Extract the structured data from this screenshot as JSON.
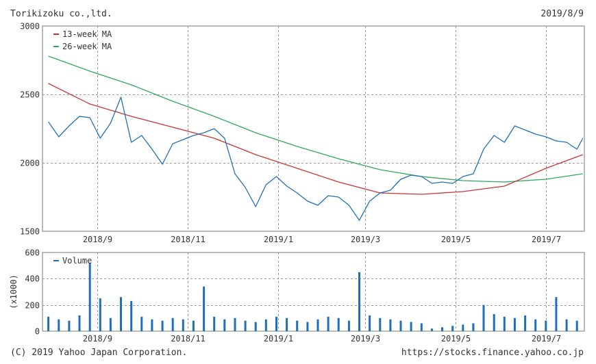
{
  "header": {
    "company": "Torikizoku co.,ltd.",
    "date": "2019/8/9"
  },
  "footer": {
    "copyright": "(C) 2019 Yahoo Japan Corporation.",
    "url": "https://stocks.finance.yahoo.co.jp"
  },
  "colors": {
    "price": "#1f6fb8",
    "ma13": "#cc3333",
    "ma26": "#2ea85a",
    "volume": "#1f6fb8",
    "grid": "#9a9a9a"
  },
  "chart_data": [
    {
      "type": "line",
      "ylim": [
        1500,
        3000
      ],
      "y_ticks": [
        "3000",
        "2500",
        "2000",
        "1500"
      ],
      "x_tick_labels": [
        "2018/9",
        "2018/11",
        "2019/1",
        "2019/3",
        "2019/5",
        "2019/7"
      ],
      "legend": [
        "13-week MA",
        "26-week MA"
      ],
      "legend_position": "top-left",
      "grid": true,
      "series": [
        {
          "name": "price",
          "dates": [
            "2018-08-13",
            "2018-08-20",
            "2018-08-27",
            "2018-09-03",
            "2018-09-10",
            "2018-09-17",
            "2018-09-24",
            "2018-10-01",
            "2018-10-08",
            "2018-10-15",
            "2018-10-22",
            "2018-10-29",
            "2018-11-05",
            "2018-11-12",
            "2018-11-19",
            "2018-11-26",
            "2018-12-03",
            "2018-12-10",
            "2018-12-17",
            "2018-12-24",
            "2018-12-31",
            "2019-01-07",
            "2019-01-14",
            "2019-01-21",
            "2019-01-28",
            "2019-02-04",
            "2019-02-11",
            "2019-02-18",
            "2019-02-25",
            "2019-03-04",
            "2019-03-11",
            "2019-03-18",
            "2019-03-25",
            "2019-04-01",
            "2019-04-08",
            "2019-04-15",
            "2019-04-22",
            "2019-04-29",
            "2019-05-06",
            "2019-05-13",
            "2019-05-20",
            "2019-05-27",
            "2019-06-03",
            "2019-06-10",
            "2019-06-17",
            "2019-06-24",
            "2019-07-01",
            "2019-07-08",
            "2019-07-15",
            "2019-07-22",
            "2019-07-29",
            "2019-08-05",
            "2019-08-09"
          ],
          "values": [
            2300,
            2190,
            2270,
            2340,
            2330,
            2180,
            2290,
            2480,
            2150,
            2200,
            2100,
            1990,
            2140,
            2170,
            2200,
            2220,
            2250,
            2180,
            1920,
            1820,
            1680,
            1840,
            1900,
            1830,
            1780,
            1720,
            1690,
            1760,
            1750,
            1690,
            1580,
            1720,
            1780,
            1800,
            1880,
            1910,
            1900,
            1850,
            1860,
            1850,
            1900,
            1920,
            2100,
            2200,
            2150,
            2270,
            2240,
            2210,
            2190,
            2160,
            2150,
            2100,
            2180
          ]
        },
        {
          "name": "13-week MA",
          "dates": [
            "2018-08-13",
            "2018-09-10",
            "2018-10-08",
            "2018-11-05",
            "2018-12-03",
            "2018-12-31",
            "2019-01-28",
            "2019-02-25",
            "2019-03-25",
            "2019-04-22",
            "2019-05-20",
            "2019-06-17",
            "2019-07-15",
            "2019-08-09"
          ],
          "values": [
            2580,
            2430,
            2340,
            2260,
            2180,
            2060,
            1960,
            1860,
            1780,
            1770,
            1790,
            1830,
            1960,
            2060
          ]
        },
        {
          "name": "26-week MA",
          "dates": [
            "2018-08-13",
            "2018-09-10",
            "2018-10-08",
            "2018-11-05",
            "2018-12-03",
            "2018-12-31",
            "2019-01-28",
            "2019-02-25",
            "2019-03-25",
            "2019-04-22",
            "2019-05-20",
            "2019-06-17",
            "2019-07-15",
            "2019-08-09"
          ],
          "values": [
            2780,
            2670,
            2570,
            2450,
            2340,
            2220,
            2120,
            2030,
            1950,
            1900,
            1870,
            1860,
            1880,
            1920
          ]
        }
      ]
    },
    {
      "type": "bar",
      "ylim": [
        0,
        600
      ],
      "y_ticks": [
        "600",
        "400",
        "200",
        "0"
      ],
      "ylabel": "(x1000)",
      "x_tick_labels": [
        "2018/9",
        "2018/11",
        "2019/1",
        "2019/3",
        "2019/5",
        "2019/7"
      ],
      "legend": [
        "Volume"
      ],
      "legend_position": "top-left",
      "grid": true,
      "series": [
        {
          "name": "Volume",
          "dates": [
            "2018-08-13",
            "2018-08-20",
            "2018-08-27",
            "2018-09-03",
            "2018-09-10",
            "2018-09-17",
            "2018-09-24",
            "2018-10-01",
            "2018-10-08",
            "2018-10-15",
            "2018-10-22",
            "2018-10-29",
            "2018-11-05",
            "2018-11-12",
            "2018-11-19",
            "2018-11-26",
            "2018-12-03",
            "2018-12-10",
            "2018-12-17",
            "2018-12-24",
            "2018-12-31",
            "2019-01-07",
            "2019-01-14",
            "2019-01-21",
            "2019-01-28",
            "2019-02-04",
            "2019-02-11",
            "2019-02-18",
            "2019-02-25",
            "2019-03-04",
            "2019-03-11",
            "2019-03-18",
            "2019-03-25",
            "2019-04-01",
            "2019-04-08",
            "2019-04-15",
            "2019-04-22",
            "2019-04-29",
            "2019-05-06",
            "2019-05-13",
            "2019-05-20",
            "2019-05-27",
            "2019-06-03",
            "2019-06-10",
            "2019-06-17",
            "2019-06-24",
            "2019-07-01",
            "2019-07-08",
            "2019-07-15",
            "2019-07-22",
            "2019-07-29",
            "2019-08-05"
          ],
          "values": [
            110,
            90,
            80,
            120,
            520,
            250,
            100,
            260,
            230,
            110,
            90,
            80,
            100,
            90,
            80,
            340,
            110,
            90,
            100,
            80,
            70,
            90,
            110,
            100,
            80,
            70,
            90,
            110,
            100,
            80,
            450,
            120,
            100,
            90,
            80,
            70,
            60,
            20,
            30,
            40,
            50,
            60,
            200,
            130,
            110,
            100,
            120,
            90,
            80,
            260,
            90,
            80
          ]
        }
      ]
    }
  ]
}
